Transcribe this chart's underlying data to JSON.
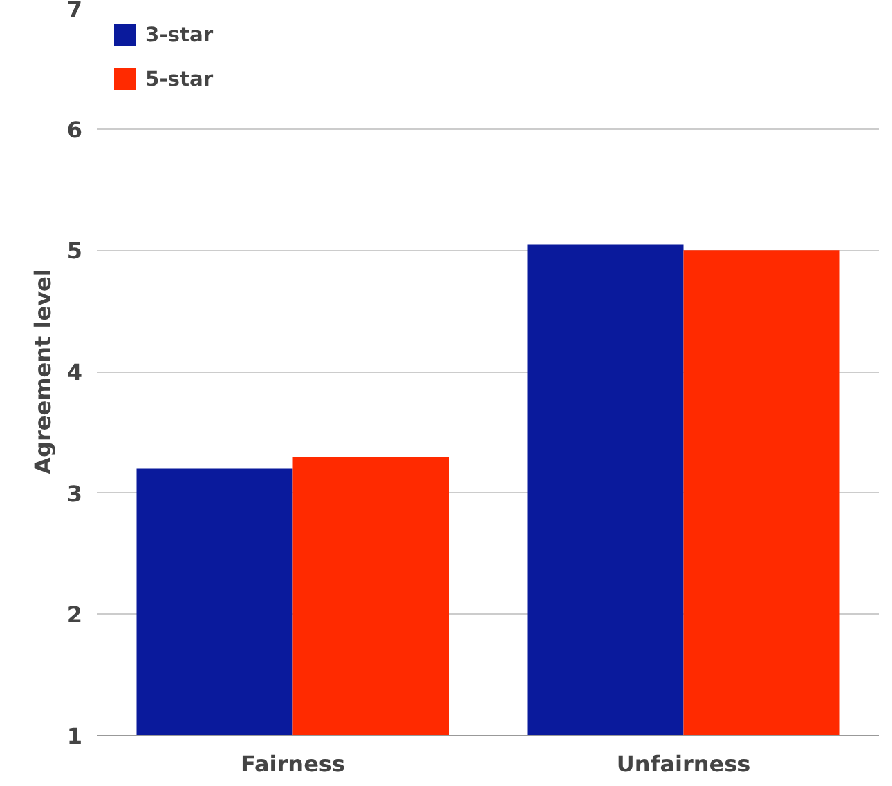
{
  "chart_data": {
    "type": "bar",
    "ylabel": "Agreement level",
    "categories": [
      "Fairness",
      "Unfairness"
    ],
    "series": [
      {
        "name": "3-star",
        "color": "#0a1a9c",
        "values": [
          3.2,
          5.05
        ]
      },
      {
        "name": "5-star",
        "color": "#ff2a00",
        "values": [
          3.3,
          5.0
        ]
      }
    ],
    "ylim": [
      1,
      7
    ],
    "yticks": [
      1,
      2,
      3,
      4,
      5,
      6,
      7
    ],
    "grid": "y",
    "legend": "top left"
  }
}
